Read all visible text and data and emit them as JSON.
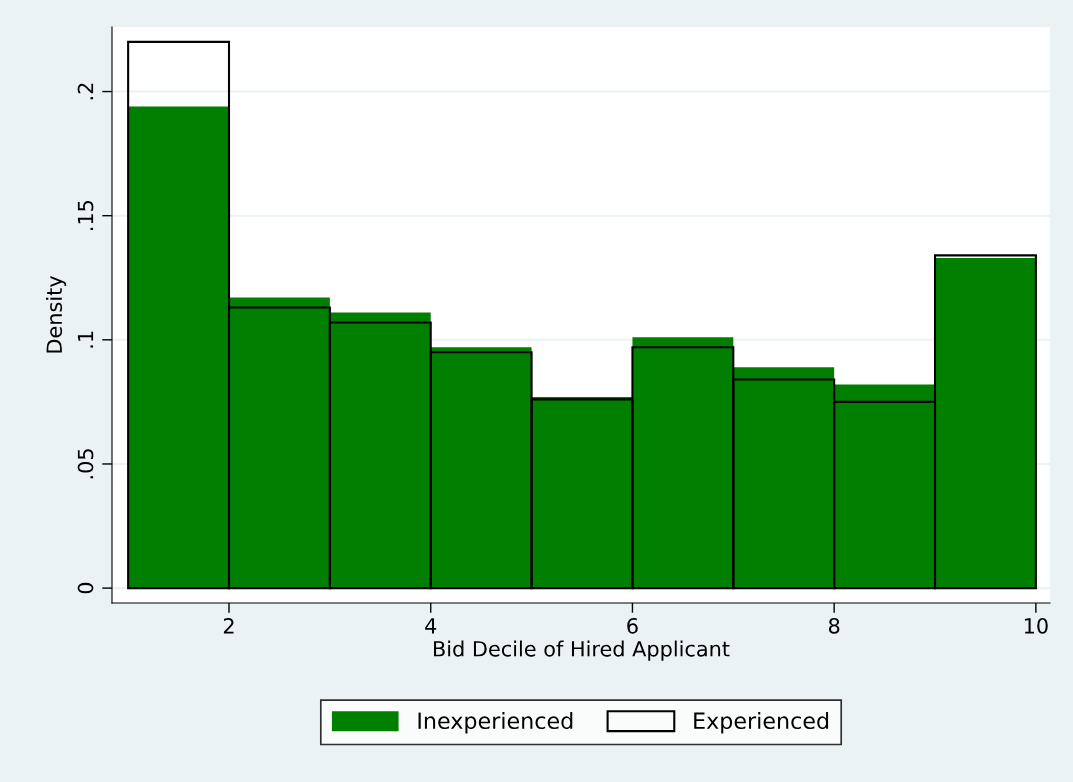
{
  "chart_data": {
    "type": "histogram",
    "xlabel": "Bid Decile of Hired Applicant",
    "ylabel": "Density",
    "bins": [
      1,
      2,
      3,
      4,
      5,
      6,
      7,
      8,
      9,
      10
    ],
    "series": [
      {
        "name": "Inexperienced",
        "color": "#007f00",
        "values": [
          0.194,
          0.117,
          0.111,
          0.097,
          0.077,
          0.101,
          0.089,
          0.082,
          0.133
        ]
      },
      {
        "name": "Experienced",
        "color": "#000000",
        "values": [
          0.22,
          0.113,
          0.107,
          0.095,
          0.076,
          0.097,
          0.084,
          0.075,
          0.134
        ]
      }
    ],
    "xlim": [
      0.84,
      10.14
    ],
    "xticks": [
      2,
      4,
      6,
      8,
      10
    ],
    "ylim": [
      -0.006,
      0.226
    ],
    "yticks": [
      0,
      {
        "value": 0.05,
        "label": ".05"
      },
      {
        "value": 0.1,
        "label": ".1"
      },
      {
        "value": 0.15,
        "label": ".15"
      },
      {
        "value": 0.2,
        "label": ".2"
      }
    ],
    "grid": "y",
    "legend": "bottom"
  }
}
